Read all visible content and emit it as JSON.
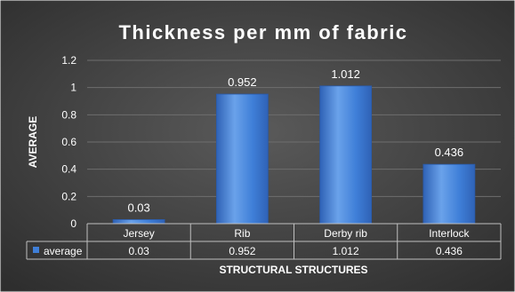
{
  "colors": {
    "background_dark": "#2c2c2c",
    "background_light": "#5a5a5a",
    "bar_light": "#6aa2ea",
    "bar_mid": "#3f7fd8",
    "bar_dark": "#2f62b6",
    "text": "#ffffff",
    "grid": "#6e6e6e"
  },
  "chart_data": {
    "type": "bar",
    "title": "Thickness per mm of fabric",
    "xlabel": "STRUCTURAL STRUCTURES",
    "ylabel": "AVERAGE",
    "categories": [
      "Jersey",
      "Rib",
      "Derby rib",
      "Interlock"
    ],
    "series": [
      {
        "name": "average",
        "values": [
          0.03,
          0.952,
          1.012,
          0.436
        ]
      }
    ],
    "data_labels": [
      "0.03",
      "0.952",
      "1.012",
      "0.436"
    ],
    "ylim": [
      0,
      1.2
    ],
    "yticks": [
      "0",
      "0.2",
      "0.4",
      "0.6",
      "0.8",
      "1",
      "1.2"
    ],
    "grid": true,
    "legend": "data-table",
    "data_table": {
      "series_label": "average",
      "values": [
        "0.03",
        "0.952",
        "1.012",
        "0.436"
      ]
    }
  }
}
